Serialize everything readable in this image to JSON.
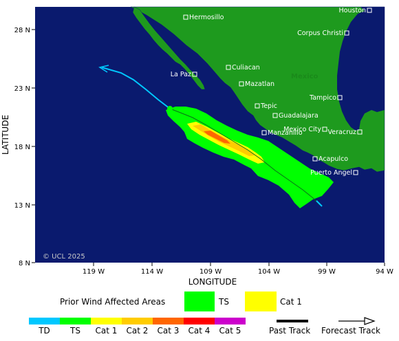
{
  "axes": {
    "x_title": "LONGITUDE",
    "y_title": "LATITUDE",
    "x_ticks": [
      "119 W",
      "114 W",
      "109 W",
      "104 W",
      "99 W",
      "94 W"
    ],
    "y_ticks": [
      "28 N",
      "23 N",
      "18 N",
      "13 N",
      "8 N"
    ]
  },
  "cities": [
    {
      "name": "Hermosillo"
    },
    {
      "name": "Houston"
    },
    {
      "name": "Corpus Christi"
    },
    {
      "name": "Culiacan"
    },
    {
      "name": "La Paz"
    },
    {
      "name": "Mazatlan"
    },
    {
      "name": "Tepic"
    },
    {
      "name": "Guadalajara"
    },
    {
      "name": "Tampico"
    },
    {
      "name": "Mexico City"
    },
    {
      "name": "Manzanillo"
    },
    {
      "name": "Veracruz"
    },
    {
      "name": "Acapulco"
    },
    {
      "name": "Puerto Angel"
    }
  ],
  "country_label": "Mexico",
  "copyright": "© UCL 2025",
  "legend": {
    "affected_title": "Prior Wind Affected Areas",
    "affected_items": [
      {
        "label": "TS",
        "color": "#00ff00"
      },
      {
        "label": "Cat 1",
        "color": "#ffff00"
      }
    ],
    "scale_items": [
      {
        "label": "TD",
        "color": "#00c8ff"
      },
      {
        "label": "TS",
        "color": "#00ff00"
      },
      {
        "label": "Cat 1",
        "color": "#ffff00"
      },
      {
        "label": "Cat 2",
        "color": "#ffcc00"
      },
      {
        "label": "Cat 3",
        "color": "#ff6600"
      },
      {
        "label": "Cat 4",
        "color": "#ff0000"
      },
      {
        "label": "Cat 5",
        "color": "#cc00cc"
      }
    ],
    "past_track_label": "Past Track",
    "forecast_track_label": "Forecast Track"
  },
  "colors": {
    "ocean": "#0a1a6e",
    "land": "#1e9a1e",
    "ts_wind": "#00ff00",
    "cat1_wind": "#ffff00",
    "cat2_wind": "#ffcc00",
    "cat3_wind": "#ff6600",
    "track_td": "#00c8ff"
  }
}
